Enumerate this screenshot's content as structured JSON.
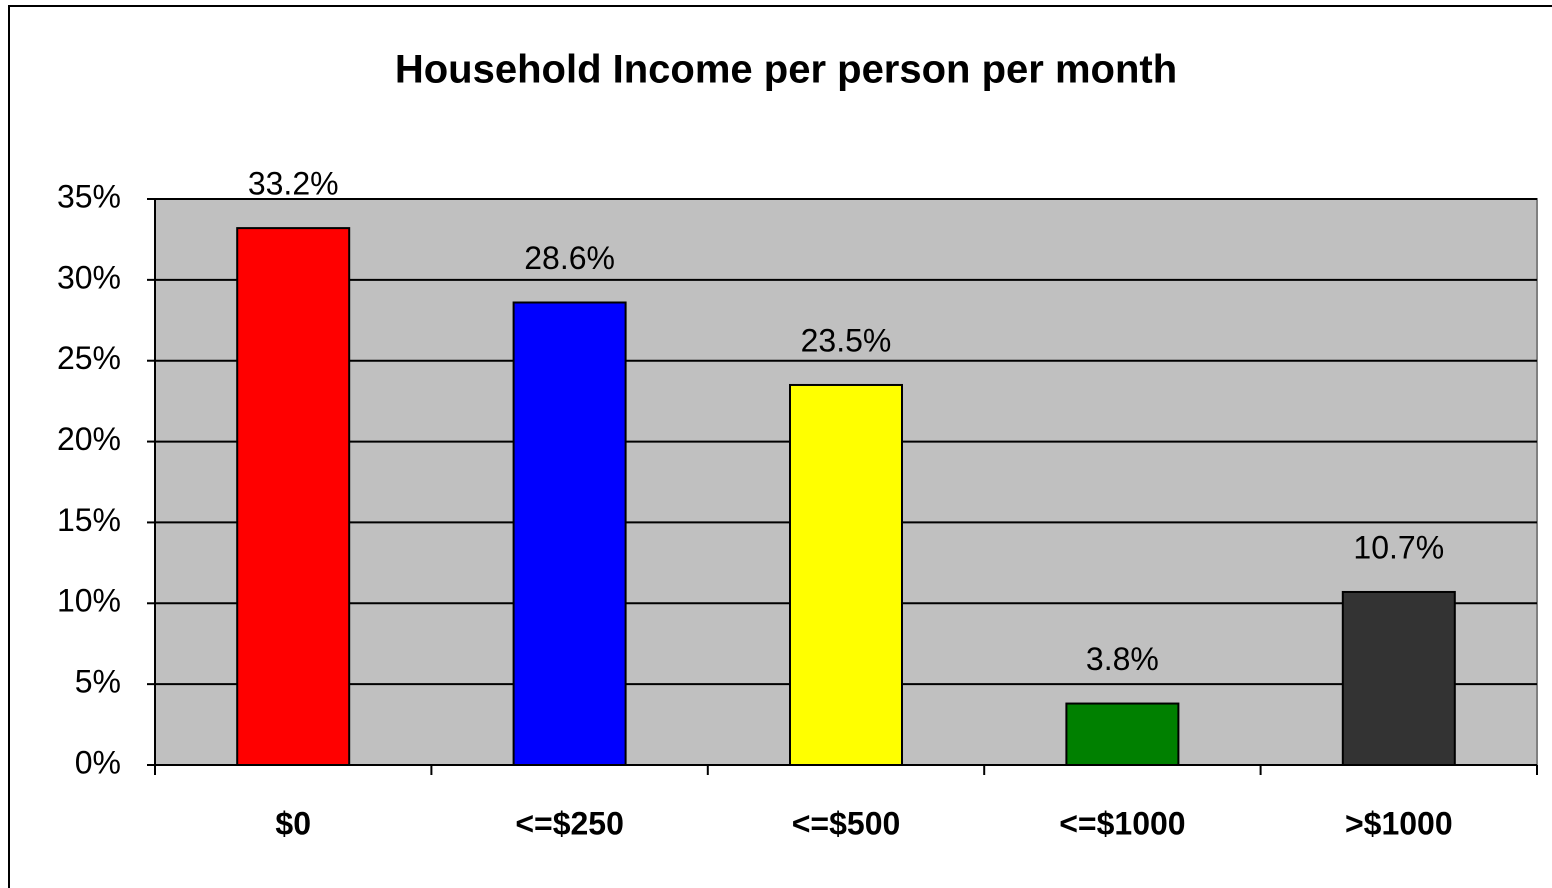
{
  "chart_data": {
    "type": "bar",
    "title": "Household Income per person per month",
    "categories": [
      "$0",
      "<=$250",
      "<=$500",
      "<=$1000",
      ">$1000"
    ],
    "values": [
      33.2,
      28.6,
      23.5,
      3.8,
      10.7
    ],
    "value_labels": [
      "33.2%",
      "28.6%",
      "23.5%",
      "3.8%",
      "10.7%"
    ],
    "colors": [
      "#ff0000",
      "#0000ff",
      "#ffff00",
      "#008000",
      "#333333"
    ],
    "ylim": [
      0,
      35
    ],
    "yticks": [
      {
        "value": 0,
        "label": "0%"
      },
      {
        "value": 5,
        "label": "5%"
      },
      {
        "value": 10,
        "label": "10%"
      },
      {
        "value": 15,
        "label": "15%"
      },
      {
        "value": 20,
        "label": "20%"
      },
      {
        "value": 25,
        "label": "25%"
      },
      {
        "value": 30,
        "label": "30%"
      },
      {
        "value": 35,
        "label": "35%"
      }
    ],
    "grid": true
  }
}
